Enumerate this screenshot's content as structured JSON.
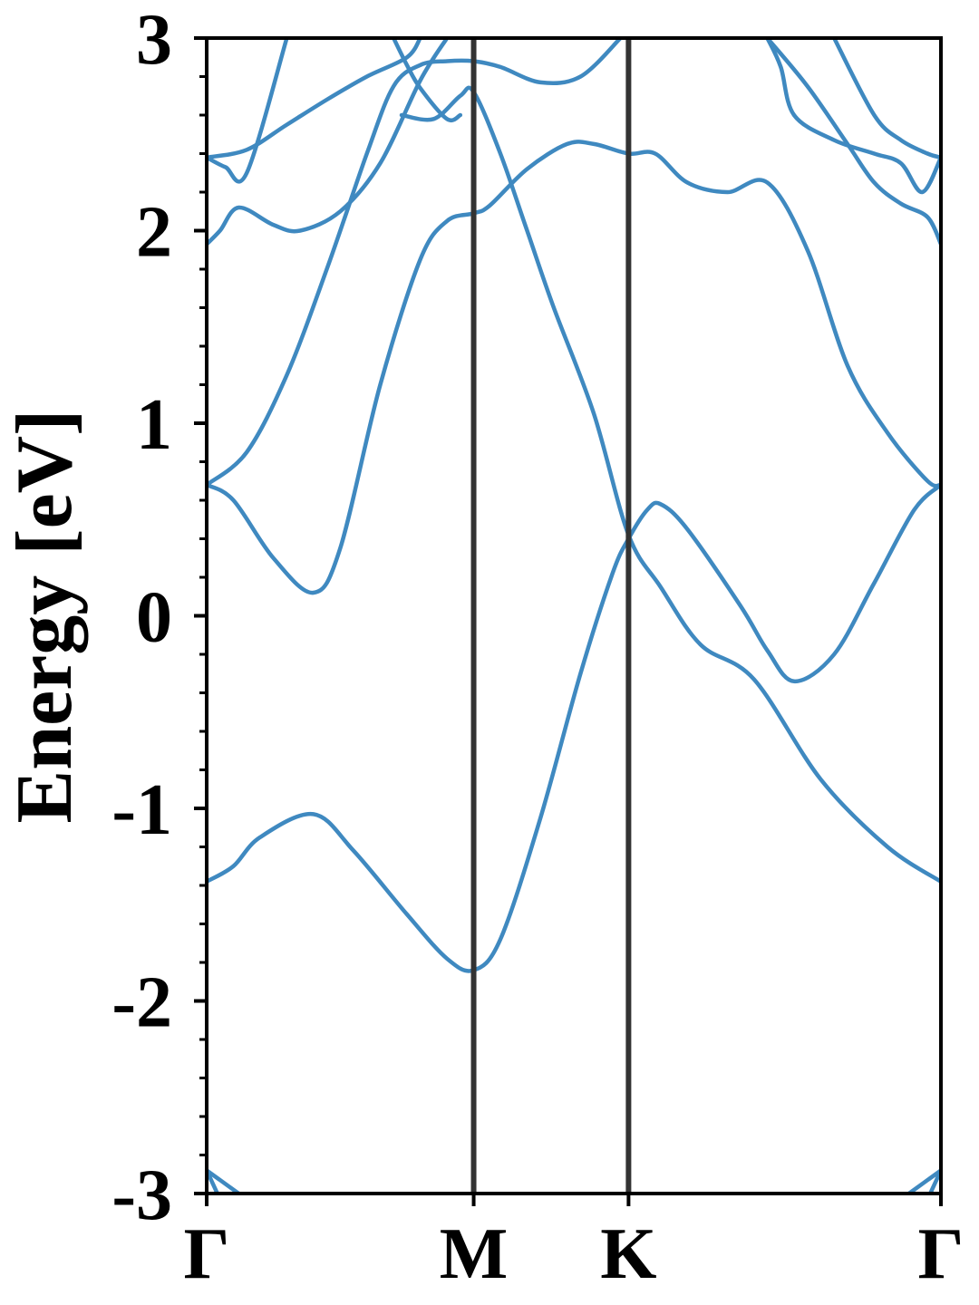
{
  "chart_data": {
    "type": "line",
    "title": "",
    "ylabel": "Energy [eV]",
    "xlabel": "",
    "ylim": [
      -3,
      3
    ],
    "yticks": [
      -3,
      -2,
      -1,
      0,
      1,
      2,
      3
    ],
    "ytick_labels": [
      "-3",
      "-2",
      "-1",
      "0",
      "1",
      "2",
      "3"
    ],
    "xlim": [
      0,
      2.75
    ],
    "kpoints": [
      {
        "label": "Γ",
        "x": 0
      },
      {
        "label": "M",
        "x": 1.0
      },
      {
        "label": "K",
        "x": 1.58
      },
      {
        "label": "Γ",
        "x": 2.75
      }
    ],
    "grid": false,
    "band_color": "#3f89c0",
    "divider_color": "#333333",
    "bands": [
      {
        "points": [
          [
            0,
            -1.38
          ],
          [
            0.1,
            -1.3
          ],
          [
            0.2,
            -1.15
          ],
          [
            0.4,
            -1.03
          ],
          [
            0.55,
            -1.22
          ],
          [
            0.75,
            -1.55
          ],
          [
            0.9,
            -1.78
          ],
          [
            1.0,
            -1.84
          ],
          [
            1.1,
            -1.68
          ],
          [
            1.25,
            -1.05
          ],
          [
            1.4,
            -0.3
          ],
          [
            1.52,
            0.22
          ],
          [
            1.58,
            0.4
          ],
          [
            1.65,
            0.55
          ],
          [
            1.7,
            0.58
          ],
          [
            1.8,
            0.45
          ],
          [
            2.0,
            0.05
          ],
          [
            2.1,
            -0.18
          ],
          [
            2.2,
            -0.34
          ],
          [
            2.35,
            -0.2
          ],
          [
            2.5,
            0.17
          ],
          [
            2.65,
            0.55
          ],
          [
            2.75,
            0.68
          ]
        ]
      },
      {
        "points": [
          [
            0,
            0.68
          ],
          [
            0.1,
            0.6
          ],
          [
            0.25,
            0.3
          ],
          [
            0.4,
            0.12
          ],
          [
            0.5,
            0.35
          ],
          [
            0.65,
            1.2
          ],
          [
            0.8,
            1.85
          ],
          [
            0.9,
            2.05
          ],
          [
            1.0,
            2.09
          ],
          [
            1.06,
            2.13
          ],
          [
            1.2,
            2.32
          ],
          [
            1.35,
            2.45
          ],
          [
            1.45,
            2.45
          ],
          [
            1.58,
            2.4
          ],
          [
            1.68,
            2.4
          ],
          [
            1.8,
            2.25
          ],
          [
            1.95,
            2.2
          ],
          [
            2.1,
            2.25
          ],
          [
            2.25,
            1.9
          ],
          [
            2.4,
            1.3
          ],
          [
            2.55,
            0.95
          ],
          [
            2.7,
            0.7
          ],
          [
            2.75,
            0.68
          ]
        ]
      },
      {
        "points": [
          [
            0,
            0.68
          ],
          [
            0.15,
            0.85
          ],
          [
            0.3,
            1.25
          ],
          [
            0.45,
            1.8
          ],
          [
            0.6,
            2.4
          ],
          [
            0.7,
            2.75
          ],
          [
            0.8,
            2.86
          ],
          [
            0.9,
            2.88
          ],
          [
            1.0,
            2.88
          ],
          [
            1.1,
            2.85
          ],
          [
            1.25,
            2.77
          ],
          [
            1.4,
            2.8
          ],
          [
            1.55,
            3.0
          ]
        ]
      },
      {
        "points": [
          [
            0,
            1.93
          ],
          [
            0.05,
            2.0
          ],
          [
            0.12,
            2.12
          ],
          [
            0.25,
            2.03
          ],
          [
            0.35,
            2.0
          ],
          [
            0.5,
            2.1
          ],
          [
            0.65,
            2.35
          ],
          [
            0.8,
            2.78
          ],
          [
            0.9,
            3.0
          ]
        ]
      },
      {
        "points": [
          [
            0.73,
            2.6
          ],
          [
            0.85,
            2.58
          ],
          [
            0.95,
            2.7
          ],
          [
            1.0,
            2.72
          ],
          [
            1.1,
            2.4
          ],
          [
            1.2,
            2.0
          ],
          [
            1.3,
            1.6
          ],
          [
            1.45,
            1.05
          ],
          [
            1.58,
            0.42
          ],
          [
            1.7,
            0.15
          ],
          [
            1.85,
            -0.15
          ],
          [
            2.05,
            -0.33
          ],
          [
            2.3,
            -0.85
          ],
          [
            2.55,
            -1.2
          ],
          [
            2.75,
            -1.38
          ]
        ]
      },
      {
        "points": [
          [
            0,
            2.38
          ],
          [
            0.07,
            2.33
          ],
          [
            0.15,
            2.3
          ],
          [
            0.3,
            3.0
          ]
        ]
      },
      {
        "points": [
          [
            0,
            2.38
          ],
          [
            0.15,
            2.42
          ],
          [
            0.3,
            2.55
          ],
          [
            0.45,
            2.68
          ],
          [
            0.6,
            2.8
          ],
          [
            0.75,
            2.9
          ],
          [
            0.8,
            3.0
          ]
        ]
      },
      {
        "points": [
          [
            0.7,
            3.0
          ],
          [
            0.75,
            2.86
          ],
          [
            0.8,
            2.74
          ],
          [
            0.9,
            2.58
          ],
          [
            0.95,
            2.6
          ]
        ]
      },
      {
        "points": [
          [
            2.1,
            3.0
          ],
          [
            2.15,
            2.85
          ],
          [
            2.2,
            2.6
          ],
          [
            2.35,
            2.47
          ],
          [
            2.5,
            2.4
          ],
          [
            2.6,
            2.35
          ],
          [
            2.68,
            2.2
          ],
          [
            2.75,
            2.38
          ]
        ]
      },
      {
        "points": [
          [
            2.1,
            3.0
          ],
          [
            2.25,
            2.75
          ],
          [
            2.4,
            2.45
          ],
          [
            2.5,
            2.25
          ],
          [
            2.6,
            2.14
          ],
          [
            2.7,
            2.07
          ],
          [
            2.75,
            1.93
          ]
        ]
      },
      {
        "points": [
          [
            2.35,
            3.0
          ],
          [
            2.5,
            2.6
          ],
          [
            2.6,
            2.47
          ],
          [
            2.7,
            2.4
          ],
          [
            2.75,
            2.38
          ]
        ]
      },
      {
        "points": [
          [
            0,
            -2.88
          ],
          [
            0.05,
            -2.93
          ],
          [
            0.12,
            -3.0
          ]
        ]
      },
      {
        "points": [
          [
            0,
            -2.88
          ],
          [
            0.04,
            -3.0
          ]
        ]
      },
      {
        "points": [
          [
            2.75,
            -2.88
          ],
          [
            2.7,
            -2.93
          ],
          [
            2.63,
            -3.0
          ]
        ]
      },
      {
        "points": [
          [
            2.75,
            -2.88
          ],
          [
            2.71,
            -3.0
          ]
        ]
      }
    ]
  }
}
